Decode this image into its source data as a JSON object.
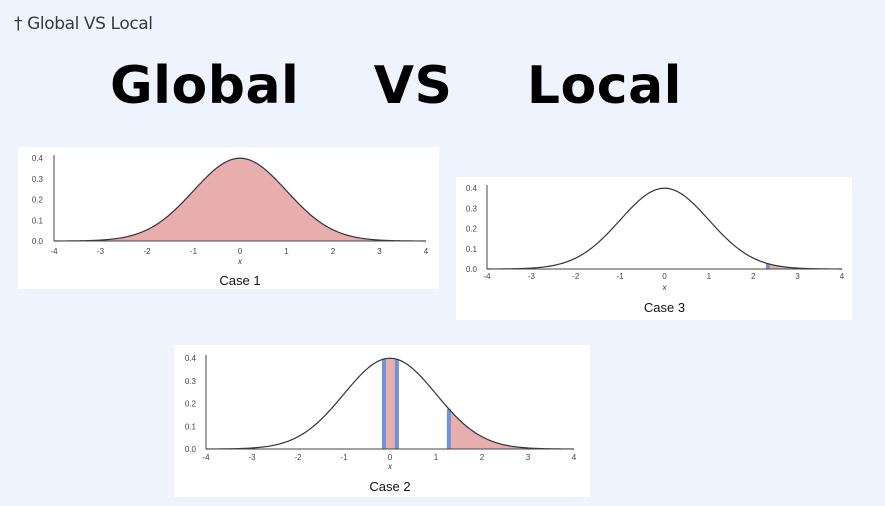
{
  "header": {
    "breadcrumb": "† Global VS Local",
    "title": "Global    VS    Local"
  },
  "colors": {
    "background": "#eef3fd",
    "fill": "#e8aeae",
    "highlight": "#6f93d8",
    "curve": "#333333"
  },
  "chart_data": [
    {
      "type": "area",
      "caption": "Case 1",
      "xlabel": "x",
      "xlim": [
        -4,
        4
      ],
      "ylim": [
        0,
        0.4
      ],
      "x_ticks": [
        "-4",
        "-3",
        "-2",
        "-1",
        "0",
        "1",
        "2",
        "3",
        "4"
      ],
      "y_ticks": [
        "0.0",
        "0.1",
        "0.2",
        "0.3",
        "0.4"
      ],
      "curve": "standard normal density",
      "shaded_interval": [
        -4,
        4
      ],
      "highlight_x": []
    },
    {
      "type": "area",
      "caption": "Case 3",
      "xlabel": "x",
      "xlim": [
        -4,
        4
      ],
      "ylim": [
        0,
        0.4
      ],
      "x_ticks": [
        "-4",
        "-3",
        "-2",
        "-1",
        "0",
        "1",
        "2",
        "3",
        "4"
      ],
      "y_ticks": [
        "0.0",
        "0.1",
        "0.2",
        "0.3",
        "0.4"
      ],
      "curve": "standard normal density",
      "shaded_interval": [
        2.33,
        4
      ],
      "highlight_x": [
        2.33
      ]
    },
    {
      "type": "area",
      "caption": "Case 2",
      "xlabel": "x",
      "xlim": [
        -4,
        4
      ],
      "ylim": [
        0,
        0.4
      ],
      "x_ticks": [
        "-4",
        "-3",
        "-2",
        "-1",
        "0",
        "1",
        "2",
        "3",
        "4"
      ],
      "y_ticks": [
        "0.0",
        "0.1",
        "0.2",
        "0.3",
        "0.4"
      ],
      "curve": "standard normal density",
      "shaded_intervals": [
        [
          -0.13,
          0.15
        ],
        [
          1.28,
          4
        ]
      ],
      "highlight_x": [
        -0.13,
        0.15,
        1.28
      ]
    }
  ]
}
